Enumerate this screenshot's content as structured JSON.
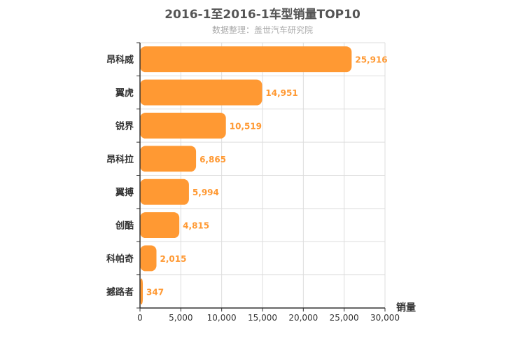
{
  "chart_data": {
    "type": "bar",
    "orientation": "horizontal",
    "title": "2016-1至2016-1车型销量TOP10",
    "subtitle": "数据整理：盖世汽车研究院",
    "xlabel": "销量",
    "ylabel": "",
    "xlim": [
      0,
      30000
    ],
    "x_ticks": [
      "0",
      "5,000",
      "10,000",
      "15,000",
      "20,000",
      "25,000",
      "30,000"
    ],
    "tick_values": [
      0,
      5000,
      10000,
      15000,
      20000,
      25000,
      30000
    ],
    "grid": true,
    "categories": [
      "昂科威",
      "翼虎",
      "锐界",
      "昂科拉",
      "翼搏",
      "创酷",
      "科帕奇",
      "撼路者"
    ],
    "values": [
      25916,
      14951,
      10519,
      6865,
      5994,
      4815,
      2015,
      347
    ],
    "value_labels": [
      "25,916",
      "14,951",
      "10,519",
      "6,865",
      "5,994",
      "4,815",
      "2,015",
      "347"
    ],
    "bar_color": "#ff9933",
    "label_color": "#ff9933"
  }
}
